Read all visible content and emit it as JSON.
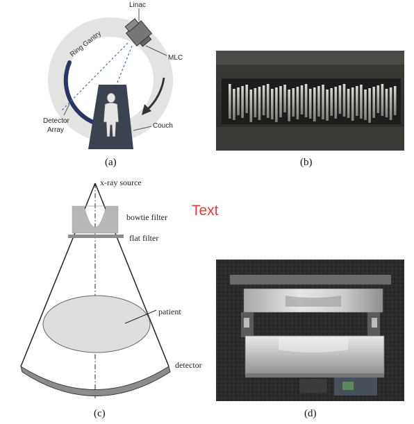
{
  "panel_a": {
    "label": "(a)",
    "linac": "Linac",
    "ring_gantry": "Ring Gantry",
    "mlc": "MLC",
    "detector_array_line1": "Detector",
    "detector_array_line2": "Array",
    "couch": "Couch"
  },
  "panel_b": {
    "label": "(b)"
  },
  "panel_c": {
    "label": "(c)",
    "xray_source": "x-ray source",
    "bowtie_filter": "bowtie filter",
    "flat_filter": "flat filter",
    "patient": "patient",
    "detector": "detector"
  },
  "panel_d": {
    "label": "(d)"
  },
  "overlay_text": "Text",
  "colors": {
    "gantry_ring": "#e3e3e1",
    "dark_navy": "#3b4350",
    "detector_arc": "#2c3466",
    "beam_dash": "#3a6fc2",
    "overlay_text": "#e03c3c",
    "filter_gray": "#b8b8b8",
    "patient_fill": "#dedede",
    "detector_c": "#8c8c8c"
  }
}
